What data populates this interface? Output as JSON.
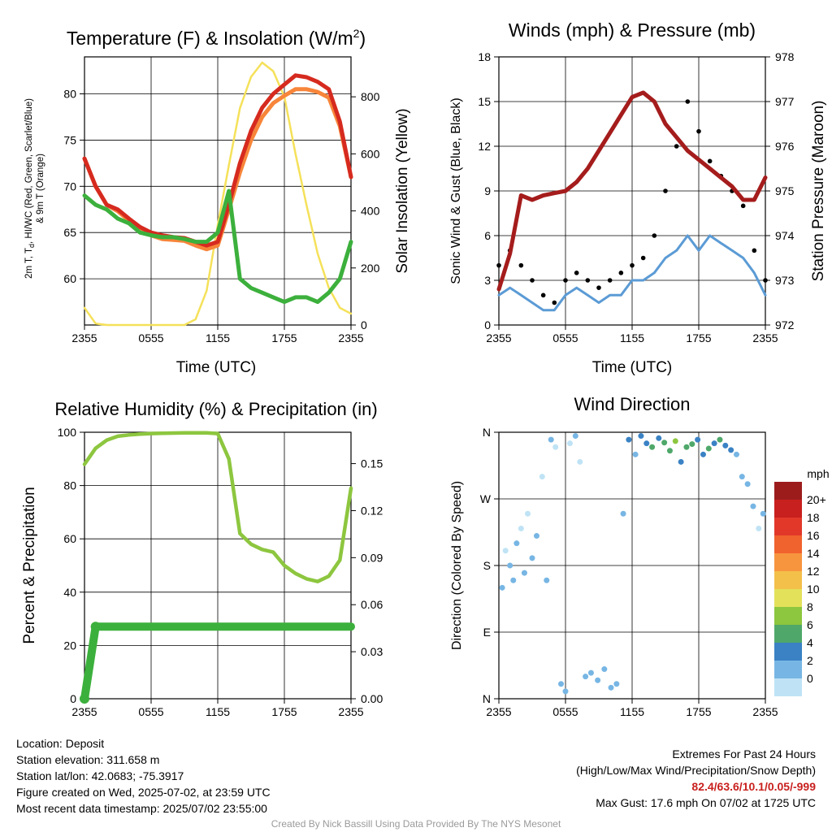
{
  "colors": {
    "temp_red": "#d62a1f",
    "temp_orange": "#f7853a",
    "dew_green": "#3cb03c",
    "insolation": "#f5e15a",
    "sonic_wind": "#5b9bd5",
    "gust": "#000000",
    "pressure": "#a51c1c",
    "rh": "#8dc63f",
    "precip": "#3cb03c"
  },
  "panels": {
    "temp": {
      "title_main": "Temperature (F) & Insolation (W/m",
      "title_sup": "2",
      "title_close": ")",
      "ylabel_line1": "2m T, T",
      "ylabel_sub": "d",
      "ylabel_line1_rest": ", HI/WC (Red, Green, Scarlet/Blue)",
      "ylabel_line2": "& 9m T (Orange)",
      "y2label": "Solar Insolation (Yellow)",
      "xlabel": "Time (UTC)"
    },
    "wind": {
      "title": "Winds (mph) & Pressure (mb)",
      "ylabel": "Sonic Wind & Gust (Blue, Black)",
      "y2label": "Station Pressure (Maroon)",
      "xlabel": "Time (UTC)"
    },
    "rh": {
      "title": "Relative Humidity (%) & Precipitation (in)",
      "ylabel": "Percent & Precipitation"
    },
    "dir": {
      "title": "Wind Direction",
      "ylabel": "Direction (Colored By Speed)",
      "colorbar_unit": "mph",
      "colorbar_labels": [
        "20+",
        "18",
        "16",
        "14",
        "12",
        "10",
        "8",
        "6",
        "4",
        "2",
        "0"
      ],
      "colorbar_colors": [
        "#9c1c1c",
        "#c8201e",
        "#e2382a",
        "#f0622e",
        "#f7953f",
        "#f3c04a",
        "#e3e15a",
        "#8dc63f",
        "#4fa86a",
        "#3a82c4",
        "#77b6e4",
        "#bfe3f5"
      ]
    }
  },
  "chart_data": [
    {
      "type": "line",
      "title": "Temperature (F) & Insolation (W/m2)",
      "xlabel": "Time (UTC)",
      "ylabel": "2m T, Td, HI/WC (Red, Green, Scarlet/Blue) & 9m T (Orange)",
      "y2label": "Solar Insolation (Yellow)",
      "x_ticks": [
        "2355",
        "0555",
        "1155",
        "1755",
        "2355"
      ],
      "y_ticks": [
        60,
        65,
        70,
        75,
        80
      ],
      "y2_ticks": [
        0,
        200,
        400,
        600,
        800
      ],
      "ylim": [
        55,
        84
      ],
      "y2lim": [
        0,
        940
      ],
      "x": [
        0,
        1,
        2,
        3,
        4,
        5,
        6,
        7,
        8,
        9,
        10,
        11,
        12,
        13,
        14,
        15,
        16,
        17,
        18,
        19,
        20,
        21,
        22,
        23,
        24
      ],
      "series": [
        {
          "name": "2m T",
          "color_key": "temp_red",
          "values": [
            73,
            70,
            68,
            67.5,
            66.5,
            65.6,
            65,
            64.7,
            64.5,
            64.4,
            64,
            63.6,
            64,
            68,
            72.5,
            76,
            78.5,
            80,
            81,
            82,
            81.8,
            81.3,
            80.5,
            77,
            71
          ]
        },
        {
          "name": "9m T",
          "color_key": "temp_orange",
          "values": [
            73,
            70,
            68,
            67.3,
            66.3,
            65.3,
            64.7,
            64.3,
            64.2,
            64.1,
            63.6,
            63.2,
            63.6,
            67.5,
            71.5,
            75,
            77.5,
            79,
            79.8,
            80.5,
            80.5,
            80.2,
            79.6,
            76.5,
            71
          ]
        },
        {
          "name": "Td",
          "color_key": "dew_green",
          "values": [
            69,
            68,
            67.5,
            66.5,
            66,
            65,
            64.7,
            64.5,
            64.5,
            64.3,
            64,
            64,
            65,
            69.5,
            60,
            59,
            58.5,
            58,
            57.5,
            58,
            58,
            57.5,
            58.5,
            60,
            64
          ]
        },
        {
          "name": "Solar Insolation",
          "color_key": "insolation",
          "axis": "y2",
          "values": [
            60,
            5,
            0,
            0,
            0,
            0,
            0,
            0,
            0,
            0,
            20,
            120,
            350,
            560,
            760,
            870,
            920,
            890,
            800,
            600,
            420,
            250,
            130,
            60,
            40
          ]
        }
      ]
    },
    {
      "type": "line",
      "title": "Winds (mph) & Pressure (mb)",
      "xlabel": "Time (UTC)",
      "ylabel": "Sonic Wind & Gust (Blue, Black)",
      "y2label": "Station Pressure (Maroon)",
      "x_ticks": [
        "2355",
        "0555",
        "1155",
        "1755",
        "2355"
      ],
      "y_ticks": [
        0,
        3,
        6,
        9,
        12,
        15,
        18
      ],
      "y2_ticks": [
        972,
        973,
        974,
        975,
        976,
        977,
        978
      ],
      "ylim": [
        0,
        18
      ],
      "y2lim": [
        972,
        978
      ],
      "x": [
        0,
        1,
        2,
        3,
        4,
        5,
        6,
        7,
        8,
        9,
        10,
        11,
        12,
        13,
        14,
        15,
        16,
        17,
        18,
        19,
        20,
        21,
        22,
        23,
        24
      ],
      "series": [
        {
          "name": "Sonic Wind",
          "color_key": "sonic_wind",
          "values": [
            2,
            2.5,
            2,
            1.5,
            1,
            1,
            2,
            2.5,
            2,
            1.5,
            2,
            2,
            3,
            3,
            3.5,
            4.5,
            5,
            6,
            5,
            6,
            5.5,
            5,
            4.5,
            3.5,
            2
          ]
        },
        {
          "name": "Gust",
          "color_key": "gust",
          "values": [
            4,
            5,
            4,
            3,
            2,
            1.5,
            3,
            3.5,
            3,
            2.5,
            3,
            3.5,
            4,
            4.5,
            6,
            9,
            12,
            15,
            13,
            11,
            10,
            9,
            8,
            5,
            3
          ]
        },
        {
          "name": "Station Pressure",
          "color_key": "pressure",
          "axis": "y2",
          "values": [
            972.8,
            973.6,
            974.9,
            974.8,
            974.9,
            974.95,
            975.0,
            975.2,
            975.5,
            975.9,
            976.3,
            976.7,
            977.1,
            977.2,
            977.0,
            976.5,
            976.2,
            975.9,
            975.7,
            975.5,
            975.3,
            975.1,
            974.8,
            974.8,
            975.3
          ]
        }
      ]
    },
    {
      "type": "line",
      "title": "Relative Humidity (%) & Precipitation (in)",
      "ylabel": "Percent & Precipitation",
      "x_ticks": [
        "2355",
        "0555",
        "1155",
        "1755",
        "2355"
      ],
      "y_ticks": [
        0,
        20,
        40,
        60,
        80,
        100
      ],
      "y2_ticks": [
        "0.00",
        "0.03",
        "0.06",
        "0.09",
        "0.12",
        "0.15"
      ],
      "ylim": [
        0,
        100
      ],
      "y2lim": [
        0,
        0.17
      ],
      "x": [
        0,
        1,
        2,
        3,
        4,
        5,
        6,
        7,
        8,
        9,
        10,
        11,
        12,
        13,
        14,
        15,
        16,
        17,
        18,
        19,
        20,
        21,
        22,
        23,
        24
      ],
      "series": [
        {
          "name": "Relative Humidity",
          "color_key": "rh",
          "values": [
            88,
            94,
            97,
            98.5,
            99,
            99.3,
            99.5,
            99.6,
            99.7,
            99.8,
            99.8,
            99.8,
            99.5,
            90,
            62,
            58,
            56,
            55,
            50,
            47,
            45,
            44,
            46,
            52,
            79
          ]
        },
        {
          "name": "Precipitation",
          "color_key": "precip",
          "axis": "y2",
          "values": [
            0.0,
            0.046,
            0.046,
            0.046,
            0.046,
            0.046,
            0.046,
            0.046,
            0.046,
            0.046,
            0.046,
            0.046,
            0.046,
            0.046,
            0.046,
            0.046,
            0.046,
            0.046,
            0.046,
            0.046,
            0.046,
            0.046,
            0.046,
            0.046,
            0.046
          ]
        }
      ]
    },
    {
      "type": "scatter",
      "title": "Wind Direction",
      "ylabel": "Direction (Colored By Speed)",
      "x_ticks": [
        "2355",
        "0555",
        "1155",
        "1755",
        "2355"
      ],
      "y_ticks": [
        "N",
        "W",
        "S",
        "E",
        "N"
      ],
      "ylim": [
        0,
        360
      ],
      "colorbar": {
        "unit": "mph",
        "labels": [
          "20+",
          "18",
          "16",
          "14",
          "12",
          "10",
          "8",
          "6",
          "4",
          "2",
          "0"
        ]
      },
      "x": [
        0.3,
        0.6,
        1.0,
        1.3,
        1.6,
        2.0,
        2.3,
        2.6,
        3.0,
        3.4,
        3.9,
        4.3,
        4.7,
        5.1,
        5.6,
        6.0,
        6.4,
        6.9,
        7.3,
        7.8,
        8.3,
        8.9,
        9.5,
        10.1,
        10.6,
        11.2,
        11.7,
        12.3,
        12.8,
        13.3,
        13.8,
        14.4,
        14.9,
        15.4,
        15.9,
        16.4,
        16.9,
        17.4,
        17.9,
        18.4,
        18.9,
        19.4,
        19.9,
        20.4,
        20.9,
        21.4,
        21.9,
        22.4,
        22.9,
        23.4,
        23.8
      ],
      "y": [
        150,
        200,
        180,
        160,
        210,
        230,
        170,
        250,
        190,
        220,
        300,
        160,
        350,
        340,
        20,
        10,
        345,
        355,
        320,
        30,
        35,
        25,
        40,
        15,
        20,
        250,
        350,
        330,
        355,
        345,
        340,
        352,
        346,
        335,
        348,
        320,
        340,
        344,
        350,
        330,
        338,
        345,
        350,
        342,
        336,
        330,
        300,
        290,
        260,
        230,
        250
      ],
      "speeds": [
        2,
        1,
        2,
        3,
        2,
        1,
        2,
        1,
        2,
        2,
        1,
        2,
        2,
        1,
        2,
        2,
        1,
        2,
        1,
        2,
        2,
        3,
        2,
        2,
        3,
        2,
        4,
        3,
        4,
        5,
        6,
        5,
        7,
        6,
        8,
        5,
        6,
        7,
        4,
        5,
        6,
        5,
        6,
        4,
        5,
        3,
        2,
        2,
        2,
        1,
        2
      ]
    }
  ],
  "info": {
    "location": "Location: Deposit",
    "elevation": "Station elevation: 311.658 m",
    "latlon": "Station lat/lon: 42.0683; -75.3917",
    "created": "Figure created on Wed, 2025-07-02, at 23:59 UTC",
    "recent": "Most recent data timestamp: 2025/07/02 23:55:00"
  },
  "extremes": {
    "title": "Extremes For Past 24 Hours",
    "subtitle": "(High/Low/Max Wind/Precipitation/Snow Depth)",
    "values": "82.4/63.6/10.1/0.05/-999",
    "max_gust": "Max Gust: 17.6 mph On 07/02 at 1725 UTC"
  },
  "credit": "Created By Nick Bassill Using Data Provided By The NYS Mesonet"
}
